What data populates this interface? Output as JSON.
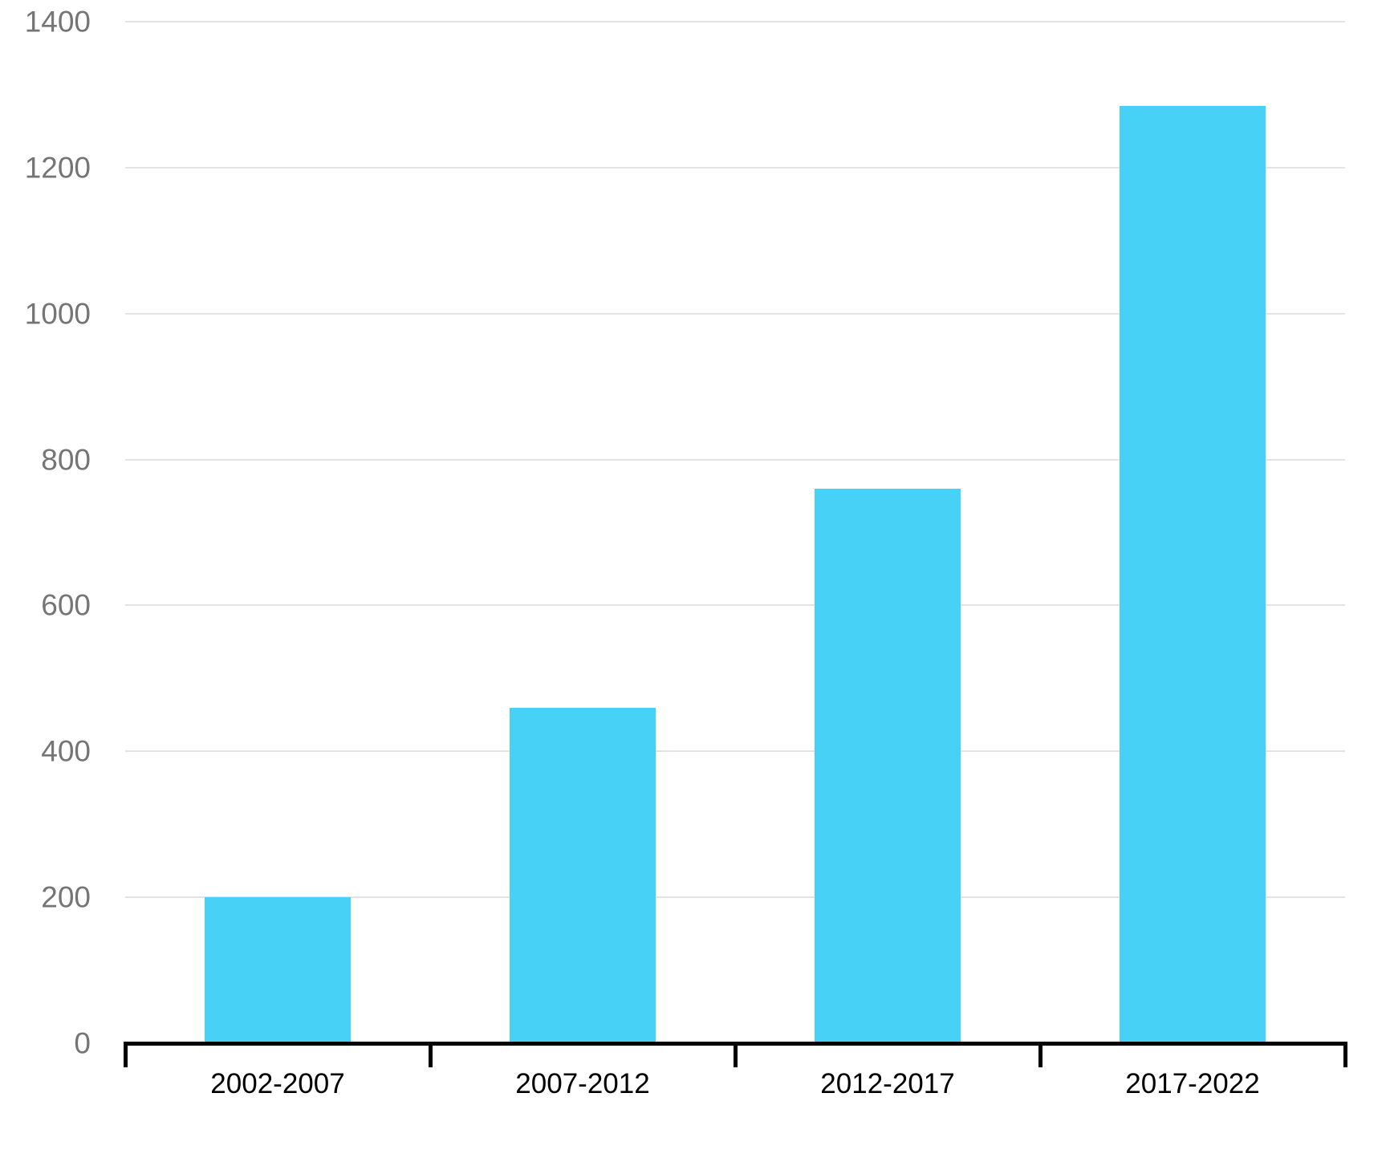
{
  "chart_data": {
    "type": "bar",
    "title": "",
    "xlabel": "",
    "ylabel": "",
    "categories": [
      "2002-2007",
      "2007-2012",
      "2012-2017",
      "2017-2022"
    ],
    "values": [
      200,
      460,
      760,
      1285
    ],
    "ylim": [
      0,
      1400
    ],
    "yticks": [
      0,
      200,
      400,
      600,
      800,
      1000,
      1200,
      1400
    ],
    "ytick_labels": [
      "0",
      "200",
      "400",
      "600",
      "800",
      "1000",
      "1200",
      "1400"
    ],
    "grid": true,
    "legend": false,
    "colors": {
      "bar": "#47D1F7",
      "gridline": "#E3E3E3",
      "axis": "#000000",
      "ytick_label": "#757575",
      "xtick_label": "#000000",
      "background": "#FFFFFF"
    }
  }
}
